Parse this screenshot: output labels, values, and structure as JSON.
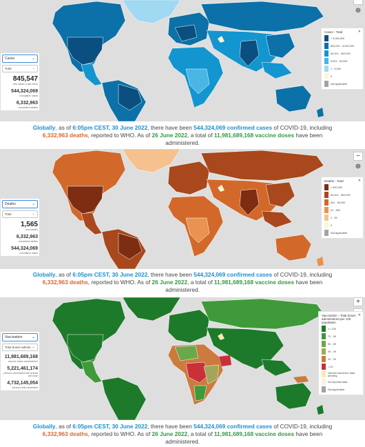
{
  "caption": {
    "t1": "Globally",
    "t2": ", as of ",
    "t3": "6:05pm CEST, 30 June 2022",
    "t4": ", there have been ",
    "t5": "544,324,069 confirmed cases",
    "t6": " of COVID-19, including ",
    "t7": "6,332,963 deaths",
    "t8": ", reported to WHO. As of ",
    "t9": "26 June 2022",
    "t10": ", a total of ",
    "t11": "11,981,689,168 vaccine doses",
    "t12": " have been administered."
  },
  "zoom": {
    "plus": "+",
    "minus": "−",
    "globe": "⊕"
  },
  "panels": {
    "cases": {
      "selector": {
        "metric": "Cases",
        "mode": "Total"
      },
      "stats": [
        {
          "value": "845,547",
          "label": "new cases in last 24hrs"
        },
        {
          "value": "544,324,069",
          "label": "cumulative cases"
        },
        {
          "value": "6,332,963",
          "label": "cumulative deaths"
        }
      ],
      "legend": {
        "title": "Cases - Total",
        "items": [
          {
            "label": "> 5,000,000",
            "color": "#0a4f80"
          },
          {
            "label": "500,001 - 5,000,000",
            "color": "#0b71a8"
          },
          {
            "label": "50,001 - 500,000",
            "color": "#1395cf"
          },
          {
            "label": "5,001 - 50,000",
            "color": "#49b6e3"
          },
          {
            "label": "1 - 5,000",
            "color": "#9fd9f2"
          },
          {
            "label": "0",
            "color": "#fdf6d4"
          },
          {
            "label": "Not Applicable",
            "color": "#a3a3a3"
          }
        ]
      }
    },
    "deaths": {
      "selector": {
        "metric": "Deaths",
        "mode": "Total"
      },
      "stats": [
        {
          "value": "1,565",
          "label": "new deaths"
        },
        {
          "value": "6,332,963",
          "label": "cumulative deaths"
        },
        {
          "value": "544,324,069",
          "label": "cumulative cases"
        }
      ],
      "legend": {
        "title": "Deaths - Total",
        "items": [
          {
            "label": "> 500,000",
            "color": "#7d2d12"
          },
          {
            "label": "50,001 - 500,000",
            "color": "#a8481c"
          },
          {
            "label": "501 - 50,000",
            "color": "#d2692a"
          },
          {
            "label": "51 - 500",
            "color": "#e8934f"
          },
          {
            "label": "1 - 50",
            "color": "#f4c18f"
          },
          {
            "label": "0",
            "color": "#fdf6d4"
          },
          {
            "label": "Not Applicable",
            "color": "#a3a3a3"
          }
        ]
      }
    },
    "vaccination": {
      "selector": {
        "metric": "Vaccination",
        "mode": "Total doses admini..."
      },
      "stats": [
        {
          "value": "11,981,689,168",
          "label": "vaccine doses administered"
        },
        {
          "value": "5,221,461,174",
          "label": "persons vaccinated with at least one dose"
        },
        {
          "value": "4,732,145,054",
          "label": "persons fully vaccinated"
        }
      ],
      "legend": {
        "title": "Vaccination - Total doses administered per 100 population",
        "items": [
          {
            "label": ">= 100",
            "color": "#1d7a2a"
          },
          {
            "label": "70 - 99",
            "color": "#3f9a3a"
          },
          {
            "label": "50 - 69",
            "color": "#6ba849"
          },
          {
            "label": "40 - 49",
            "color": "#a3a65a"
          },
          {
            "label": "20 - 39",
            "color": "#cc7a3d"
          },
          {
            "label": "< 20",
            "color": "#c9303a"
          },
          {
            "label": "Vaccine launched, data pending",
            "color": "#fde7b0"
          },
          {
            "label": "No reported data",
            "color": "#f7f1dd"
          },
          {
            "label": "Not Applicable",
            "color": "#a3a3a3"
          }
        ]
      }
    }
  }
}
